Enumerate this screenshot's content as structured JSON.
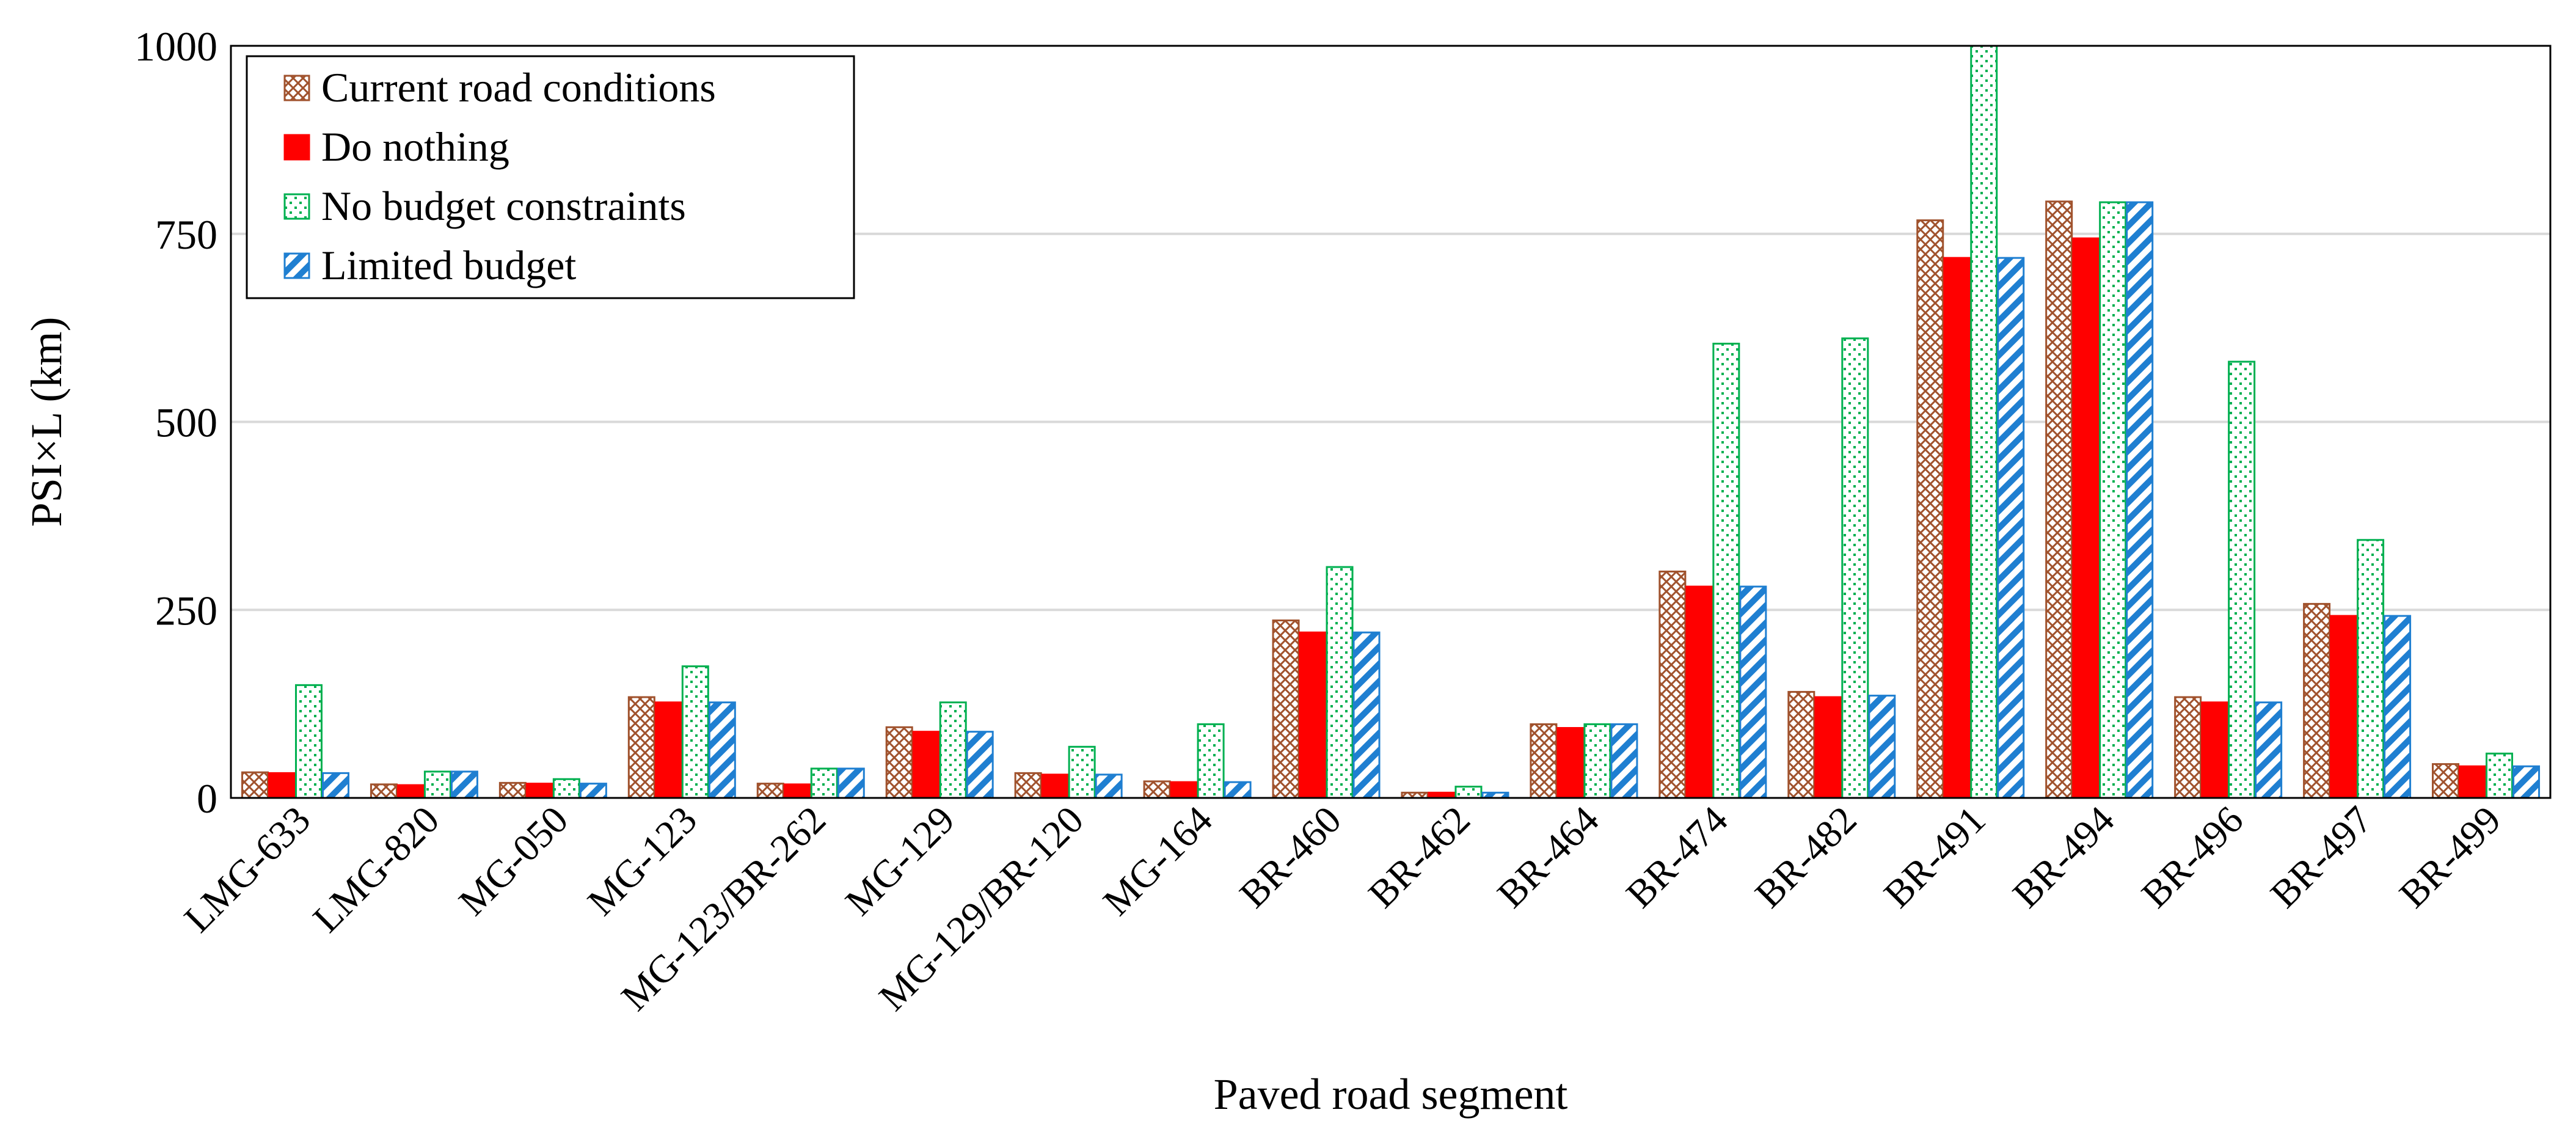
{
  "chart_data": {
    "type": "bar",
    "title": "",
    "xlabel": "Paved road segment",
    "ylabel": "PSI×L (km)",
    "ylim": [
      0,
      1000
    ],
    "yticks": [
      0,
      250,
      500,
      750,
      1000
    ],
    "grid": "horizontal",
    "legend_position": "top-left",
    "categories": [
      "LMG-633",
      "LMG-820",
      "MG-050",
      "MG-123",
      "MG-123/BR-262",
      "MG-129",
      "MG-129/BR-120",
      "MG-164",
      "BR-460",
      "BR-462",
      "BR-464",
      "BR-474",
      "BR-482",
      "BR-491",
      "BR-494",
      "BR-496",
      "BR-497",
      "BR-499"
    ],
    "series": [
      {
        "name": "Current road conditions",
        "color": "#a0522d",
        "pattern": "cross-hatch",
        "values": [
          34,
          18,
          20,
          134,
          19,
          94,
          33,
          22,
          236,
          7,
          98,
          301,
          141,
          768,
          793,
          134,
          258,
          45
        ]
      },
      {
        "name": "Do nothing",
        "color": "#ff0000",
        "pattern": "solid",
        "values": [
          33,
          17,
          19,
          127,
          18,
          88,
          31,
          21,
          220,
          7,
          93,
          281,
          134,
          718,
          744,
          127,
          242,
          42
        ]
      },
      {
        "name": "No budget constraints",
        "color": "#00b050",
        "pattern": "dotted",
        "values": [
          150,
          35,
          25,
          175,
          39,
          127,
          68,
          98,
          307,
          15,
          98,
          604,
          611,
          1000,
          792,
          580,
          343,
          59
        ]
      },
      {
        "name": "Limited budget",
        "color": "#1f7fd1",
        "pattern": "diagonal-stripes",
        "values": [
          33,
          35,
          19,
          127,
          39,
          88,
          31,
          21,
          220,
          7,
          98,
          281,
          136,
          718,
          792,
          127,
          242,
          42
        ]
      }
    ]
  }
}
